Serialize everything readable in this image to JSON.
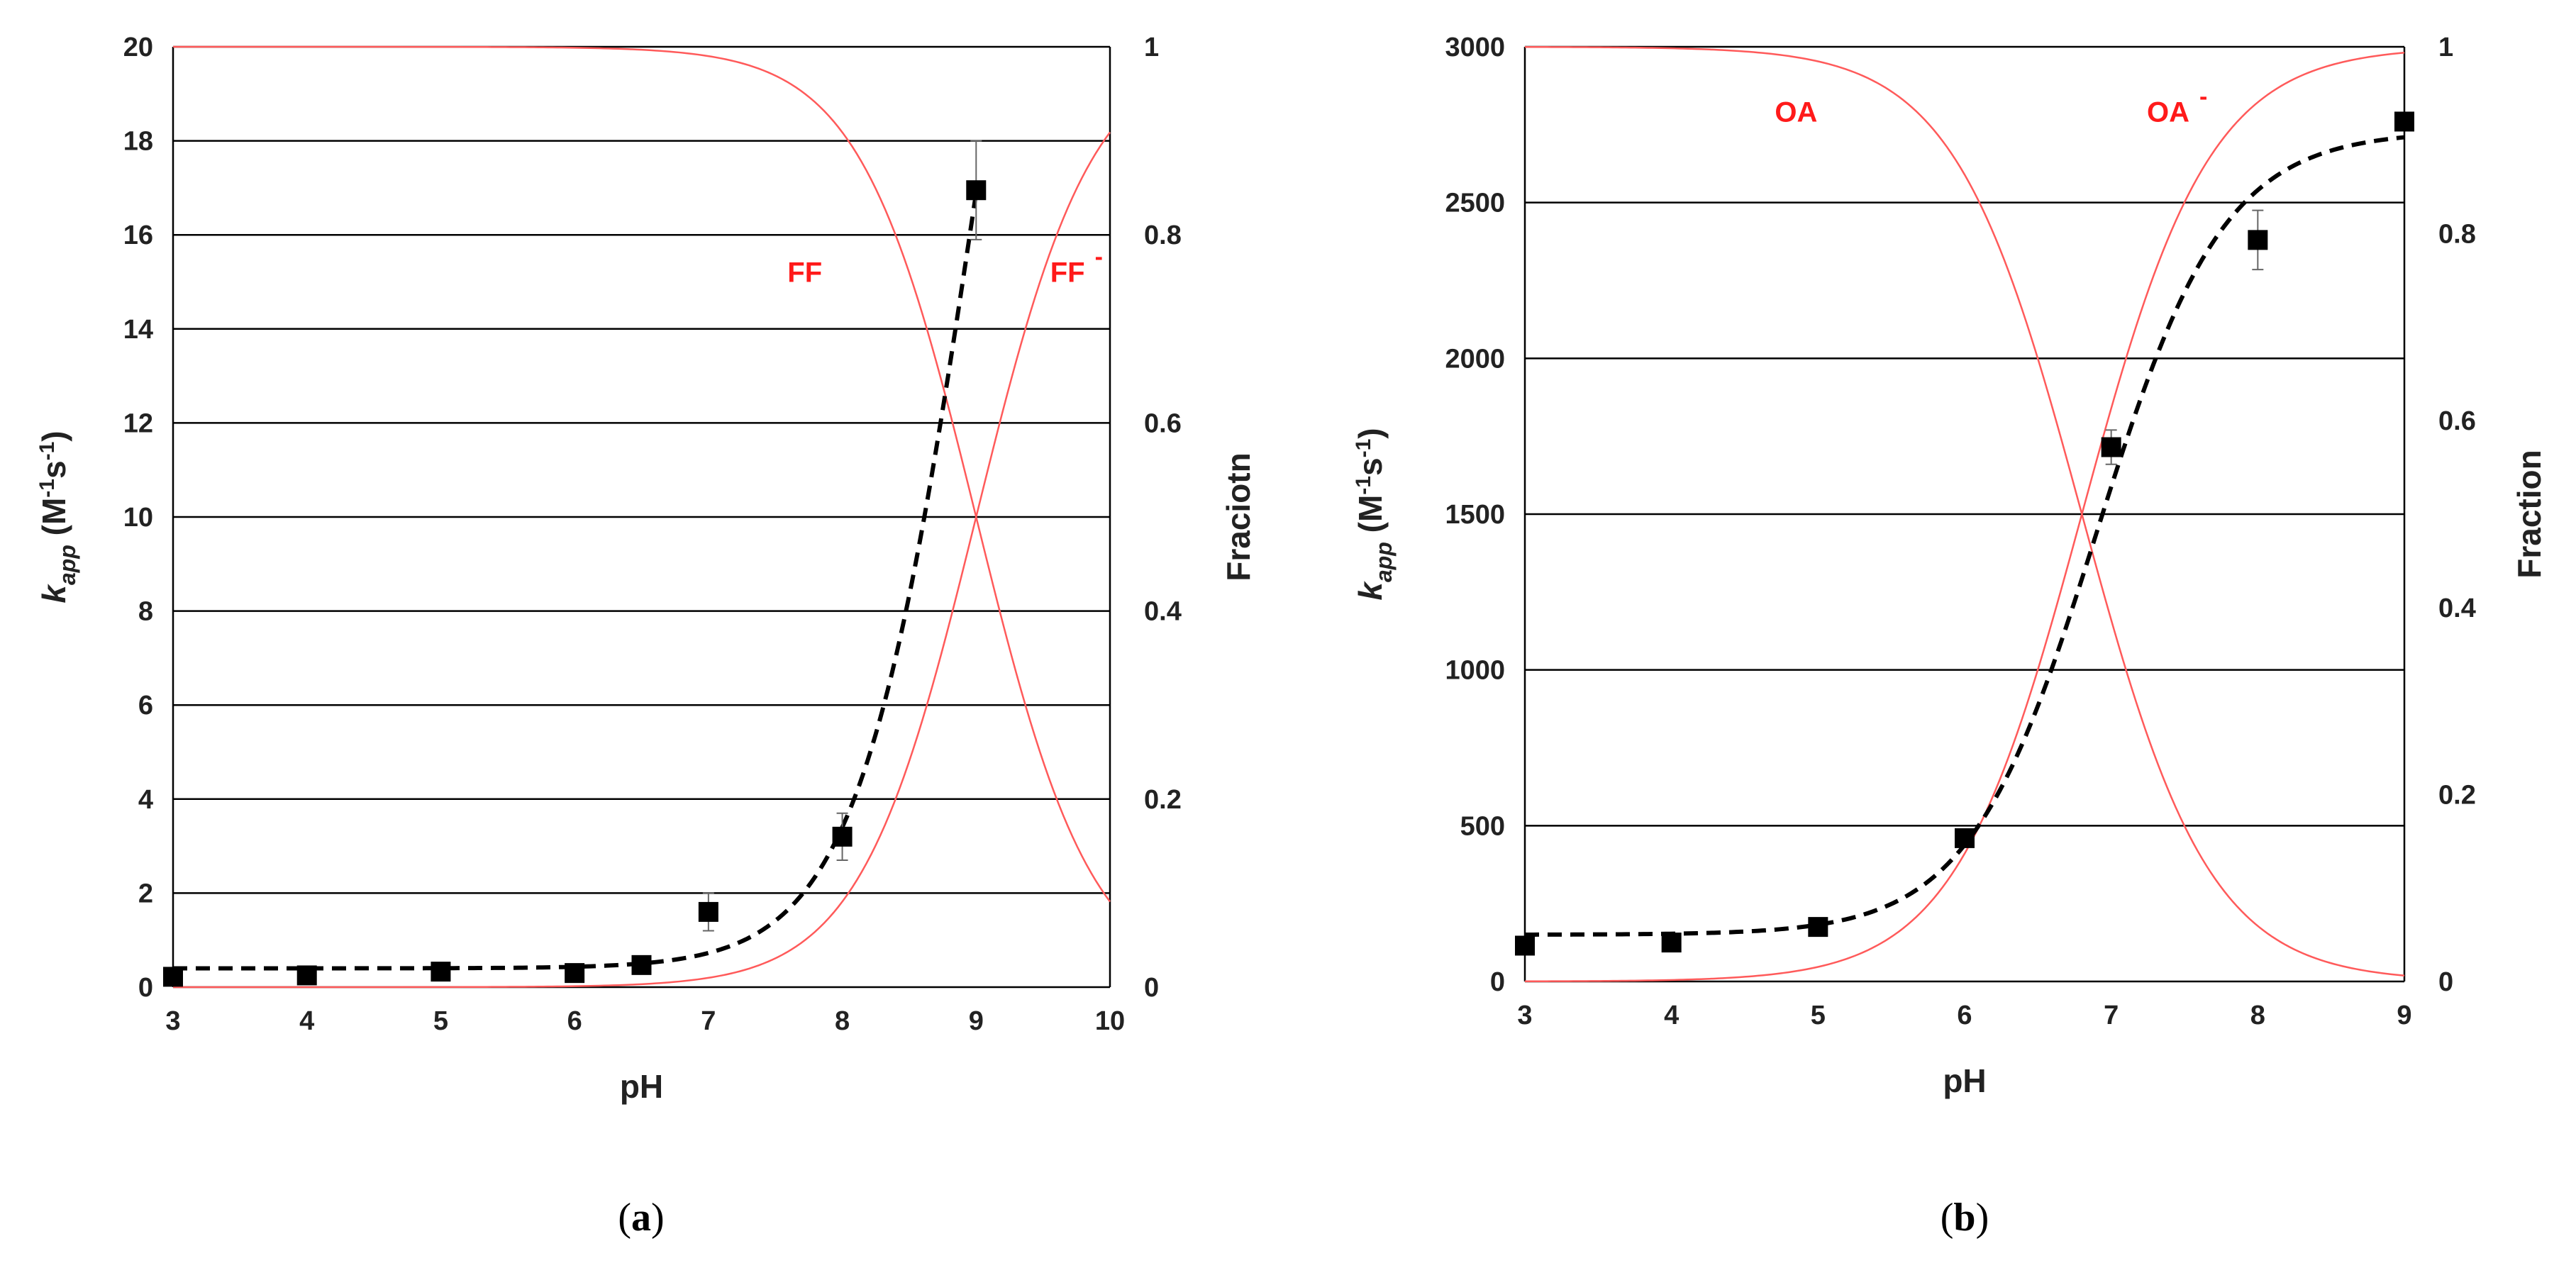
{
  "colors": {
    "fraction_curve": "#ff5a5a",
    "annotation": "#ff1a1a",
    "fit": "#000000",
    "marker": "#000000",
    "grid": "#000000"
  },
  "chart_data": [
    {
      "panel_label": "(a)",
      "type": "scatter",
      "xlabel": "pH",
      "ylabel": "kapp (M-1s-1)",
      "ylabel_parts": {
        "k": "k",
        "sub": "app",
        "pre": " (M",
        "sup1": "-1",
        "mid": "s",
        "sup2": "-1",
        "post": ")"
      },
      "y2label": "Fraciotn",
      "xlim": [
        3,
        10
      ],
      "ylim": [
        0,
        20
      ],
      "y2lim": [
        0,
        1
      ],
      "xticks": [
        "3",
        "4",
        "5",
        "6",
        "7",
        "8",
        "9",
        "10"
      ],
      "yticks": [
        "0",
        "2",
        "4",
        "6",
        "8",
        "10",
        "12",
        "14",
        "16",
        "18",
        "20"
      ],
      "y2ticks": [
        "0",
        "0.2",
        "0.4",
        "0.6",
        "0.8",
        "1"
      ],
      "gridlines_y": [
        2,
        4,
        6,
        8,
        10,
        12,
        14,
        16,
        18,
        20
      ],
      "points": [
        {
          "x": 3,
          "y": 0.22
        },
        {
          "x": 4,
          "y": 0.25
        },
        {
          "x": 5,
          "y": 0.33
        },
        {
          "x": 6,
          "y": 0.3
        },
        {
          "x": 6.5,
          "y": 0.47
        },
        {
          "x": 7,
          "y": 1.6,
          "err": 0.4
        },
        {
          "x": 8,
          "y": 3.2,
          "err": 0.5
        },
        {
          "x": 9,
          "y": 16.95,
          "err": 1.05
        }
      ],
      "fit": {
        "style": "dashed",
        "model": "k0 + k1 / (1 + 10^(pKa - pH))",
        "k0": 0.4,
        "k1": 33.0,
        "pKa": 9.0,
        "x_range": [
          3,
          9
        ]
      },
      "species_fractions": [
        {
          "name": "FF",
          "pKa": 9.0,
          "kind": "acid"
        },
        {
          "name": "FF",
          "pKa": 9.0,
          "kind": "base"
        }
      ],
      "annotations": [
        {
          "text": "FF",
          "x": 7.72,
          "y": 15.0,
          "superscript": ""
        },
        {
          "text": "FF",
          "x": 9.75,
          "y": 15.0,
          "superscript": "-"
        }
      ]
    },
    {
      "panel_label": "(b)",
      "type": "scatter",
      "xlabel": "pH",
      "ylabel": "kapp (M-1s-1)",
      "ylabel_parts": {
        "k": "k",
        "sub": "app",
        "pre": " (M",
        "sup1": "-1",
        "mid": "s",
        "sup2": "-1",
        "post": ")"
      },
      "y2label": "Fraction",
      "xlim": [
        3,
        9
      ],
      "ylim": [
        0,
        3000
      ],
      "y2lim": [
        0,
        1
      ],
      "xticks": [
        "3",
        "4",
        "5",
        "6",
        "7",
        "8",
        "9"
      ],
      "yticks": [
        "0",
        "500",
        "1000",
        "1500",
        "2000",
        "2500",
        "3000"
      ],
      "y2ticks": [
        "0",
        "0.2",
        "0.4",
        "0.6",
        "0.8",
        "1"
      ],
      "gridlines_y": [
        500,
        1000,
        1500,
        2000,
        2500,
        3000
      ],
      "points": [
        {
          "x": 3,
          "y": 115
        },
        {
          "x": 4,
          "y": 125
        },
        {
          "x": 5,
          "y": 175
        },
        {
          "x": 6,
          "y": 460
        },
        {
          "x": 7,
          "y": 1715,
          "err": 55
        },
        {
          "x": 8,
          "y": 2380,
          "err": 95
        },
        {
          "x": 9,
          "y": 2760
        }
      ],
      "fit": {
        "style": "dashed",
        "model": "k0 + k1 / (1 + 10^(pKa - pH))",
        "k0": 150,
        "k1": 2580,
        "pKa": 6.9,
        "x_range": [
          3,
          9
        ]
      },
      "species_fractions": [
        {
          "name": "OA",
          "pKa": 6.8,
          "kind": "acid"
        },
        {
          "name": "OA",
          "pKa": 6.8,
          "kind": "base"
        }
      ],
      "annotations": [
        {
          "text": "OA",
          "x": 4.85,
          "y": 2760,
          "superscript": ""
        },
        {
          "text": "OA",
          "x": 7.45,
          "y": 2760,
          "superscript": "-"
        }
      ]
    }
  ]
}
